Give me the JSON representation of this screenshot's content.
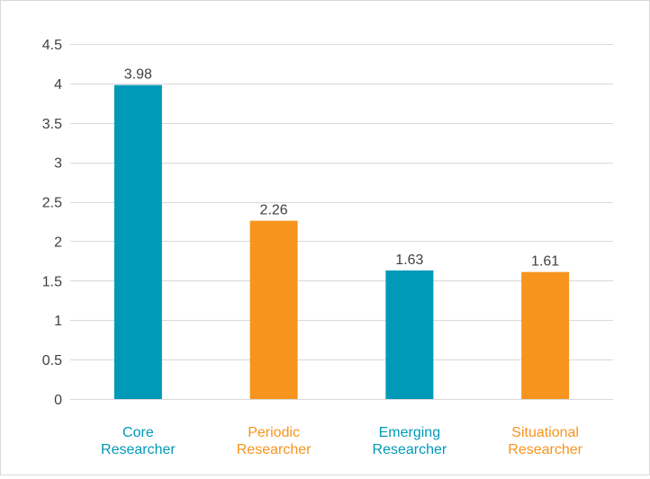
{
  "chart_data": {
    "type": "bar",
    "categories": [
      [
        "Core",
        "Researcher"
      ],
      [
        "Periodic",
        "Researcher"
      ],
      [
        "Emerging",
        "Researcher"
      ],
      [
        "Situational",
        "Researcher"
      ]
    ],
    "values": [
      3.98,
      2.26,
      1.63,
      1.61
    ],
    "data_labels": [
      "3.98",
      "2.26",
      "1.63",
      "1.61"
    ],
    "colors": [
      "#0099b8",
      "#f7941d",
      "#0099b8",
      "#f7941d"
    ],
    "ylim": [
      0,
      4.5
    ],
    "yticks": [
      0,
      0.5,
      1,
      1.5,
      2,
      2.5,
      3,
      3.5,
      4,
      4.5
    ],
    "ytick_labels": [
      "0",
      "0.5",
      "1",
      "1.5",
      "2",
      "2.5",
      "3",
      "3.5",
      "4",
      "4.5"
    ],
    "grid": true,
    "title": "",
    "xlabel": "",
    "ylabel": "",
    "legend": "none"
  },
  "style": {
    "grid_color": "#d9d9d9",
    "tick_label_color": "#404040",
    "data_label_color": "#404040"
  }
}
